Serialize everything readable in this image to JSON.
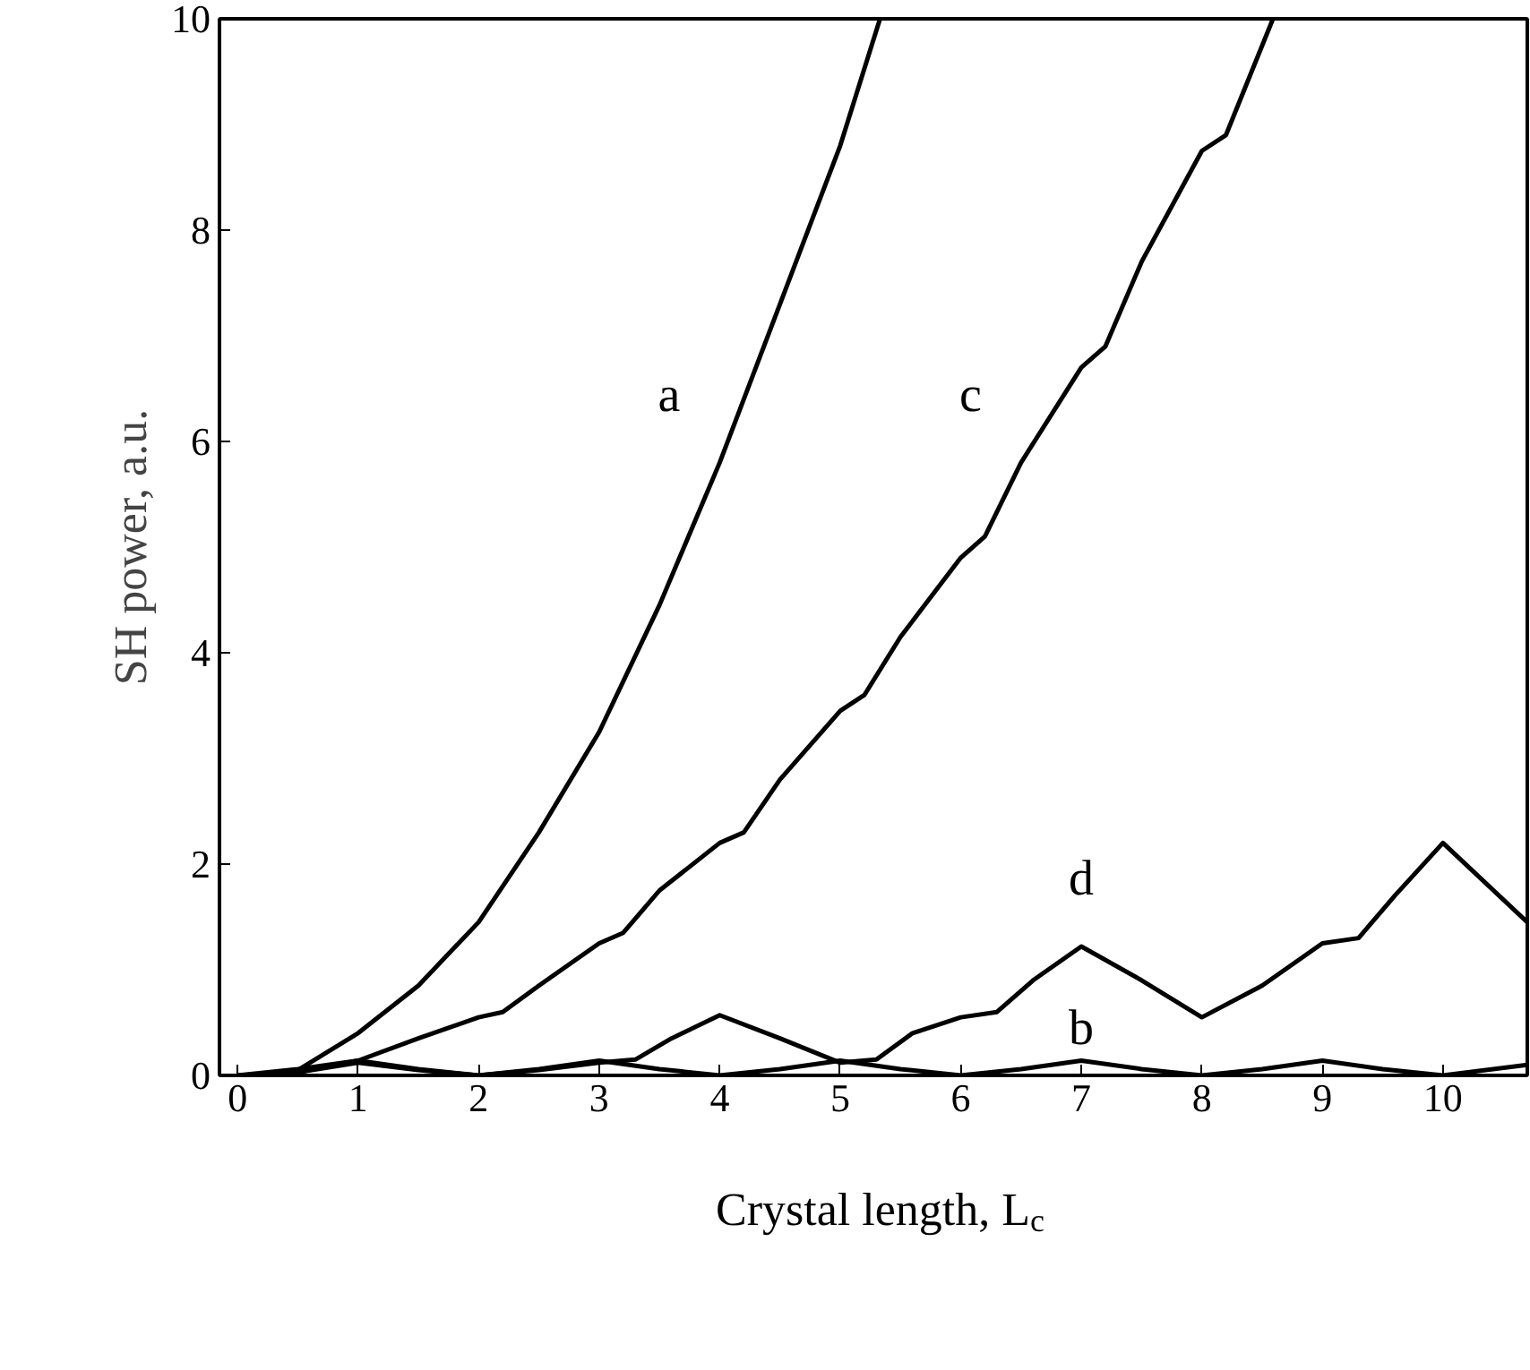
{
  "chart_data": {
    "type": "line",
    "xlabel": "Crystal length, L$_{c}$",
    "ylabel": "SH power, a.u.",
    "xlim": [
      -0.15,
      10.7
    ],
    "ylim": [
      0,
      10
    ],
    "xticks": [
      0,
      1,
      2,
      3,
      4,
      5,
      6,
      7,
      8,
      9,
      10
    ],
    "yticks": [
      0,
      2,
      4,
      6,
      8,
      10
    ],
    "series": [
      {
        "name": "a",
        "color": "#000000",
        "x": [
          0,
          0.3,
          0.5,
          1,
          1.5,
          2,
          2.5,
          3,
          3.5,
          4,
          4.5,
          5,
          5.33
        ],
        "values": [
          0,
          0,
          0.05,
          0.4,
          0.85,
          1.45,
          2.3,
          3.25,
          4.45,
          5.8,
          7.3,
          8.8,
          10
        ]
      },
      {
        "name": "b",
        "color": "#000000",
        "x": [
          0,
          0.5,
          1,
          1.5,
          2,
          2.5,
          3,
          3.5,
          4,
          4.5,
          5,
          5.5,
          6,
          6.5,
          7,
          7.5,
          8,
          8.5,
          9,
          9.5,
          10,
          10.7
        ],
        "values": [
          0,
          0.06,
          0.14,
          0.06,
          0,
          0.06,
          0.14,
          0.06,
          0,
          0.06,
          0.14,
          0.06,
          0,
          0.06,
          0.14,
          0.06,
          0,
          0.06,
          0.14,
          0.06,
          0,
          0.1
        ]
      },
      {
        "name": "c",
        "color": "#000000",
        "x": [
          0,
          0.5,
          1,
          1.5,
          2,
          2.2,
          2.5,
          3,
          3.2,
          3.5,
          4,
          4.2,
          4.5,
          5,
          5.2,
          5.5,
          6,
          6.2,
          6.5,
          7,
          7.2,
          7.5,
          8,
          8.2,
          8.59
        ],
        "values": [
          0,
          0.03,
          0.14,
          0.35,
          0.55,
          0.6,
          0.85,
          1.25,
          1.35,
          1.75,
          2.2,
          2.3,
          2.8,
          3.45,
          3.6,
          4.15,
          4.9,
          5.1,
          5.8,
          6.7,
          6.9,
          7.7,
          8.75,
          8.9,
          10
        ]
      },
      {
        "name": "d",
        "color": "#000000",
        "x": [
          0,
          0.5,
          1,
          1.5,
          2,
          2.5,
          3,
          3.3,
          3.6,
          4,
          4.5,
          5,
          5.3,
          5.6,
          6,
          6.3,
          6.6,
          7,
          7.5,
          8,
          8.5,
          9,
          9.3,
          9.6,
          10,
          10.7
        ],
        "values": [
          0,
          0.03,
          0.12,
          0.05,
          0,
          0.05,
          0.12,
          0.15,
          0.35,
          0.57,
          0.35,
          0.12,
          0.15,
          0.4,
          0.55,
          0.6,
          0.9,
          1.22,
          0.9,
          0.55,
          0.85,
          1.25,
          1.3,
          1.7,
          2.2,
          1.45
        ]
      }
    ]
  }
}
